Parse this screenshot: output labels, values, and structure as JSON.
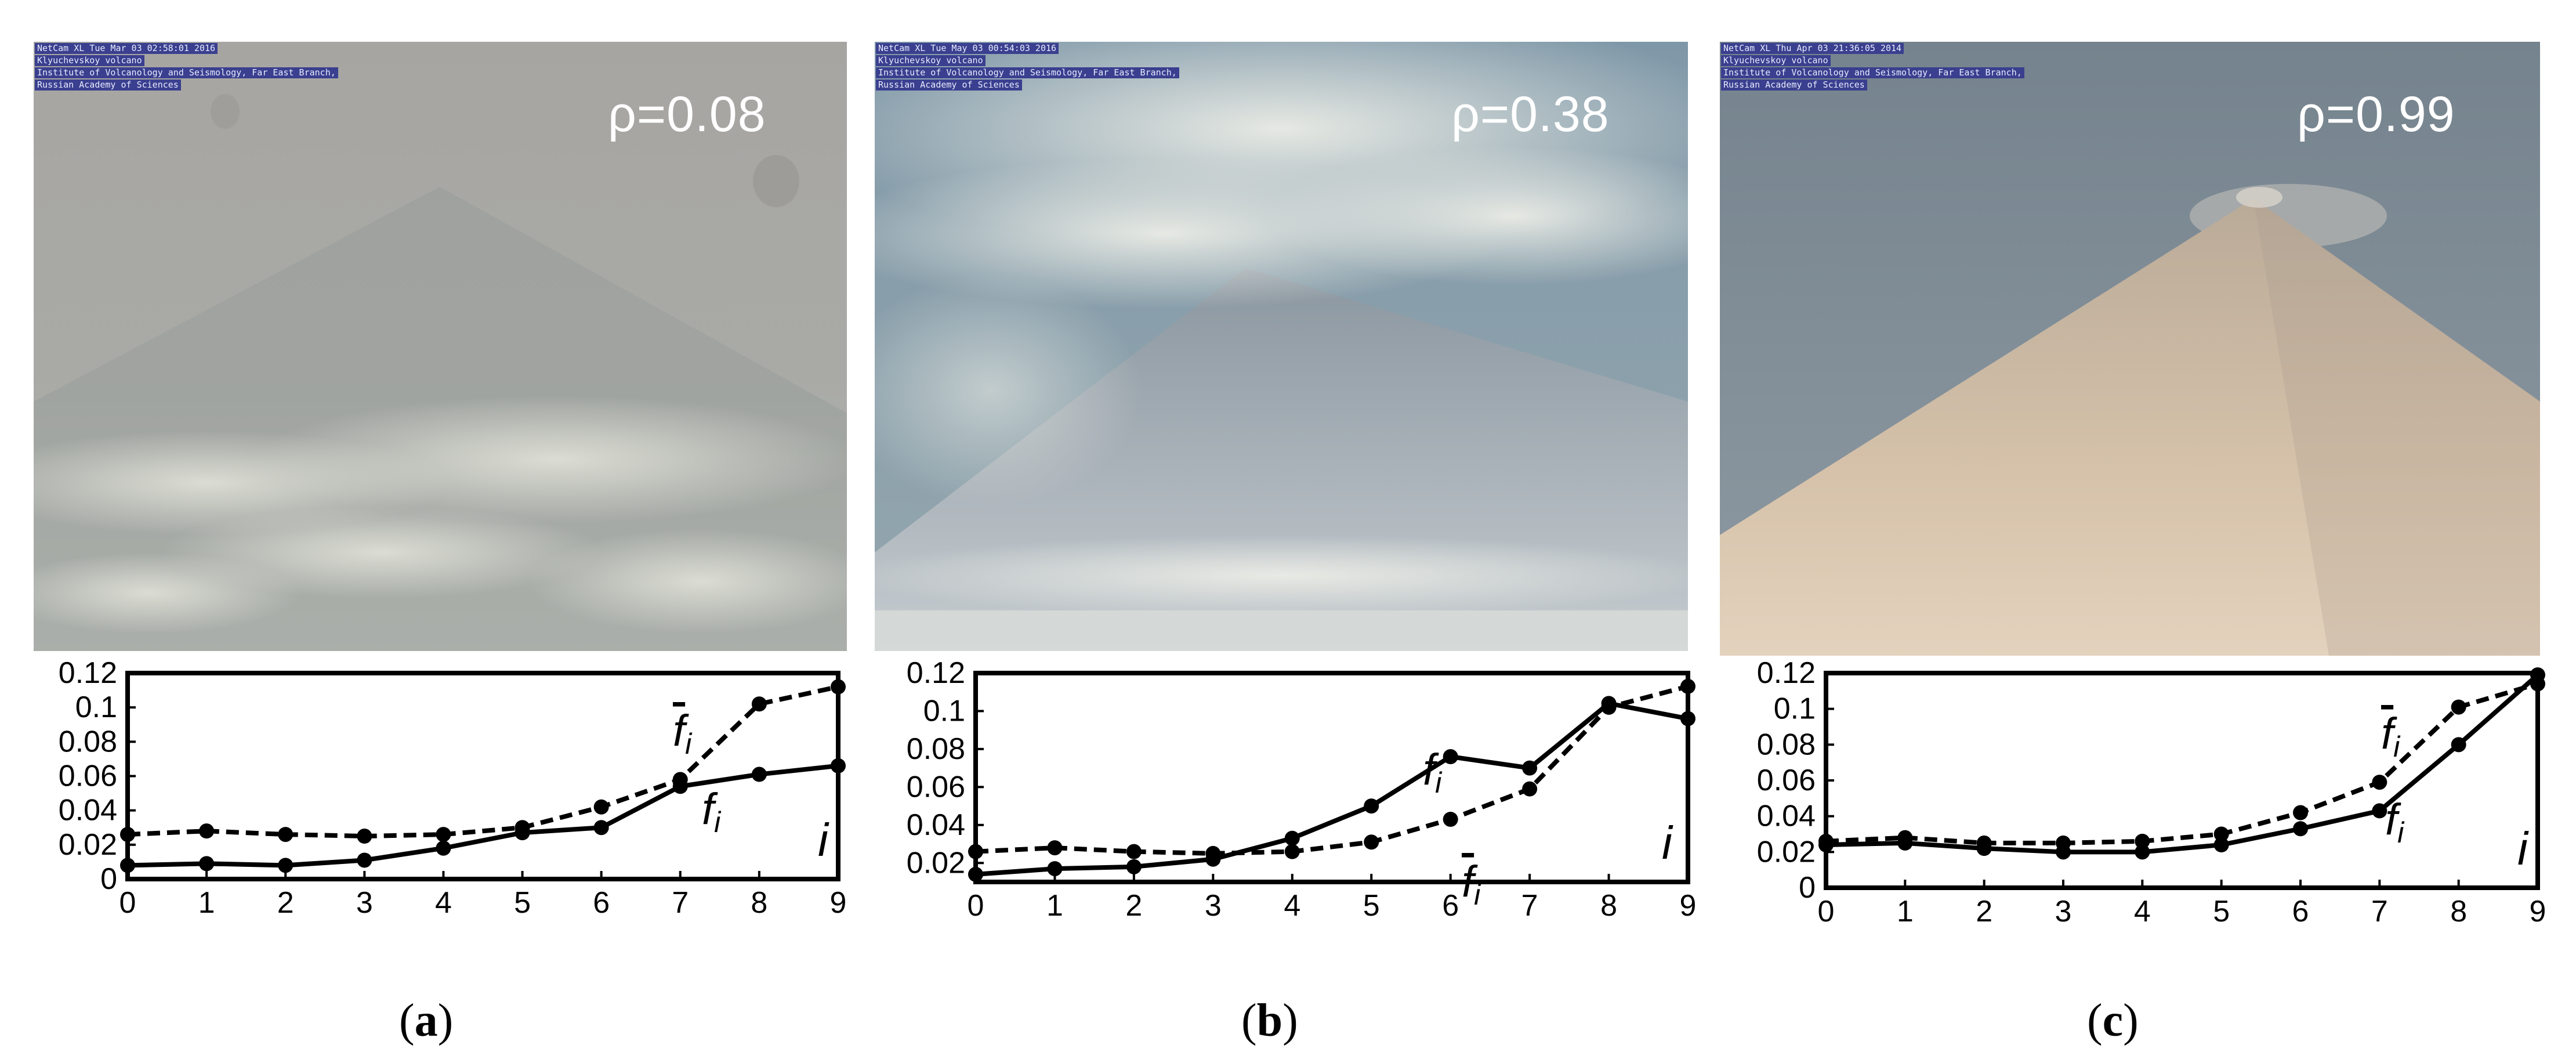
{
  "panels": [
    {
      "id": "a",
      "rho_label": "ρ=0.08",
      "stamp": [
        "NetCam XL Tue Mar 03 02:58:01 2016",
        "Klyuchevskoy volcano",
        "Institute of Volcanology and Seismology, Far East Branch,",
        "Russian Academy of Sciences"
      ],
      "caption_prefix": "(",
      "caption_letter": "a",
      "caption_suffix": ")"
    },
    {
      "id": "b",
      "rho_label": "ρ=0.38",
      "stamp": [
        "NetCam XL Tue May 03 00:54:03 2016",
        "Klyuchevskoy volcano",
        "Institute of Volcanology and Seismology, Far East Branch,",
        "Russian Academy of Sciences"
      ],
      "caption_prefix": "(",
      "caption_letter": "b",
      "caption_suffix": ")"
    },
    {
      "id": "c",
      "rho_label": "ρ=0.99",
      "stamp": [
        "NetCam XL Thu Apr 03 21:36:05 2014",
        "Klyuchevskoy volcano",
        "Institute of Volcanology and Seismology, Far East Branch,",
        "Russian Academy of Sciences"
      ],
      "caption_prefix": "(",
      "caption_letter": "c",
      "caption_suffix": ")"
    }
  ],
  "chart_data": [
    {
      "type": "line",
      "x": [
        0,
        1,
        2,
        3,
        4,
        5,
        6,
        7,
        8,
        9
      ],
      "ylim": [
        0,
        0.12
      ],
      "yticks": [
        "0",
        "0.02",
        "0.04",
        "0.06",
        "0.08",
        "0.1",
        "0.12"
      ],
      "xticks": [
        "0",
        "1",
        "2",
        "3",
        "4",
        "5",
        "6",
        "7",
        "8",
        "9"
      ],
      "xlabel": "i",
      "series": [
        {
          "label_main": "f",
          "label_sub": "i",
          "overbar": false,
          "style": "solid",
          "values": [
            0.008,
            0.009,
            0.008,
            0.011,
            0.018,
            0.027,
            0.03,
            0.054,
            0.061,
            0.066
          ]
        },
        {
          "label_main": "f",
          "label_sub": "i",
          "overbar": true,
          "style": "dashed",
          "values": [
            0.026,
            0.028,
            0.026,
            0.025,
            0.026,
            0.03,
            0.042,
            0.058,
            0.102,
            0.112
          ]
        }
      ]
    },
    {
      "type": "line",
      "x": [
        0,
        1,
        2,
        3,
        4,
        5,
        6,
        7,
        8,
        9
      ],
      "ylim": [
        0.01,
        0.12
      ],
      "yticks": [
        "0.02",
        "0.04",
        "0.06",
        "0.08",
        "0.1",
        "0.12"
      ],
      "xticks": [
        "0",
        "1",
        "2",
        "3",
        "4",
        "5",
        "6",
        "7",
        "8",
        "9"
      ],
      "xlabel": "i",
      "series": [
        {
          "label_main": "f",
          "label_sub": "i",
          "overbar": false,
          "style": "solid",
          "values": [
            0.014,
            0.017,
            0.018,
            0.022,
            0.033,
            0.05,
            0.076,
            0.07,
            0.104,
            0.096
          ]
        },
        {
          "label_main": "f",
          "label_sub": "i",
          "overbar": true,
          "style": "dashed",
          "values": [
            0.026,
            0.028,
            0.026,
            0.025,
            0.026,
            0.031,
            0.043,
            0.059,
            0.102,
            0.113
          ]
        }
      ]
    },
    {
      "type": "line",
      "x": [
        0,
        1,
        2,
        3,
        4,
        5,
        6,
        7,
        8,
        9
      ],
      "ylim": [
        0,
        0.12
      ],
      "yticks": [
        "0",
        "0.02",
        "0.04",
        "0.06",
        "0.08",
        "0.1",
        "0.12"
      ],
      "xticks": [
        "0",
        "1",
        "2",
        "3",
        "4",
        "5",
        "6",
        "7",
        "8",
        "9"
      ],
      "xlabel": "i",
      "series": [
        {
          "label_main": "f",
          "label_sub": "i",
          "overbar": false,
          "style": "solid",
          "values": [
            0.024,
            0.025,
            0.022,
            0.02,
            0.02,
            0.024,
            0.033,
            0.043,
            0.08,
            0.119
          ]
        },
        {
          "label_main": "f",
          "label_sub": "i",
          "overbar": true,
          "style": "dashed",
          "values": [
            0.026,
            0.028,
            0.025,
            0.025,
            0.026,
            0.03,
            0.042,
            0.059,
            0.101,
            0.114
          ]
        }
      ]
    }
  ]
}
